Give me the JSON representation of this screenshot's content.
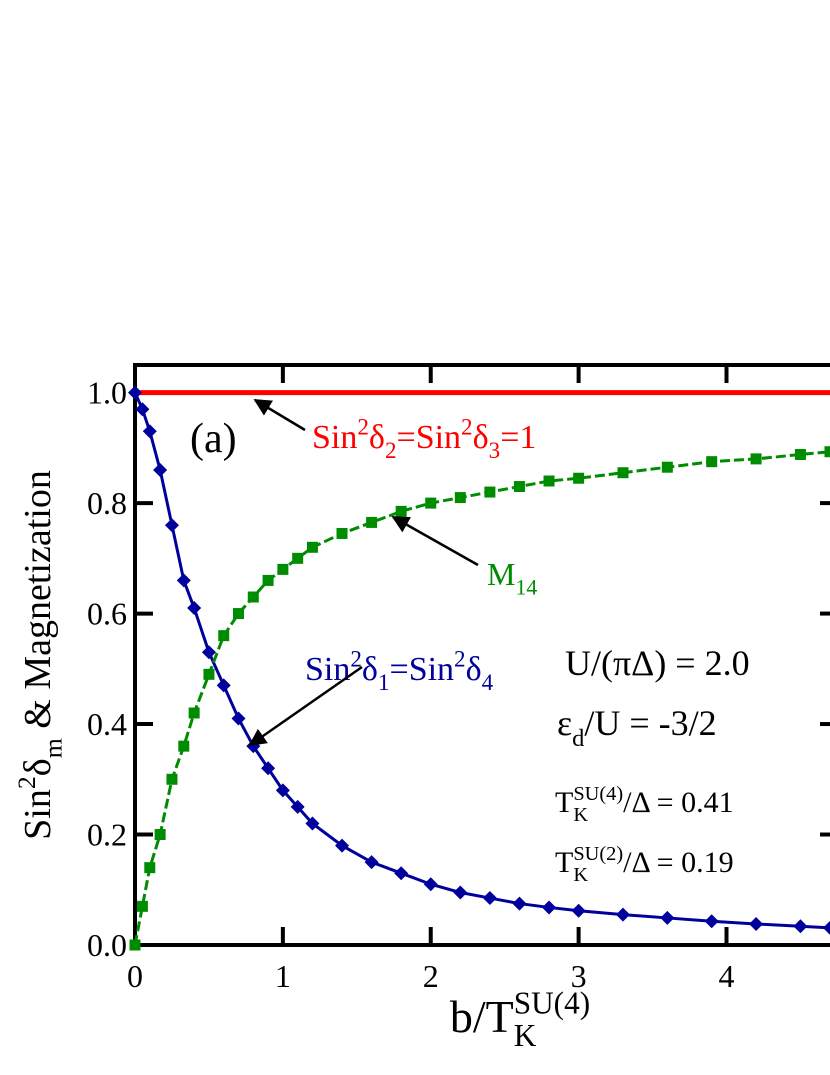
{
  "chart_data": {
    "type": "scatter",
    "xlim": [
      0,
      4.7
    ],
    "ylim": [
      0,
      1.05
    ],
    "xticks": [
      0,
      1,
      2,
      3,
      4
    ],
    "yticks": [
      {
        "value": 0,
        "label": "0.0"
      },
      {
        "value": 0.2,
        "label": "0.2"
      },
      {
        "value": 0.4,
        "label": "0.4"
      },
      {
        "value": 0.6,
        "label": "0.6"
      },
      {
        "value": 0.8,
        "label": "0.8"
      },
      {
        "value": 1,
        "label": "1.0"
      }
    ],
    "x_label": [
      {
        "t": "b/T"
      },
      {
        "sub": "K",
        "sup": "SU(4)"
      }
    ],
    "y_label": [
      {
        "t": "Sin"
      },
      {
        "sup": "2"
      },
      {
        "t": "δ"
      },
      {
        "sub": "m"
      },
      {
        "t": " & Magnetization"
      }
    ],
    "panel_label": "(a)",
    "series": [
      {
        "color": "#ff0000",
        "marker": "none",
        "x": [
          0,
          4.7
        ],
        "values": [
          1,
          1
        ]
      },
      {
        "color": "#00009c",
        "marker": "diamond",
        "x": [
          0,
          0.05,
          0.1,
          0.17,
          0.25,
          0.33,
          0.4,
          0.5,
          0.6,
          0.7,
          0.8,
          0.9,
          1.0,
          1.1,
          1.2,
          1.4,
          1.6,
          1.8,
          2.0,
          2.2,
          2.4,
          2.6,
          2.8,
          3.0,
          3.3,
          3.6,
          3.9,
          4.2,
          4.5,
          4.7
        ],
        "values": [
          1.0,
          0.97,
          0.93,
          0.86,
          0.76,
          0.66,
          0.61,
          0.53,
          0.47,
          0.41,
          0.36,
          0.32,
          0.28,
          0.25,
          0.22,
          0.18,
          0.15,
          0.13,
          0.11,
          0.095,
          0.085,
          0.075,
          0.068,
          0.062,
          0.055,
          0.049,
          0.043,
          0.038,
          0.034,
          0.031
        ]
      },
      {
        "color": "#008c00",
        "marker": "square",
        "x": [
          0,
          0.05,
          0.1,
          0.17,
          0.25,
          0.33,
          0.4,
          0.5,
          0.6,
          0.7,
          0.8,
          0.9,
          1.0,
          1.1,
          1.2,
          1.4,
          1.6,
          1.8,
          2.0,
          2.2,
          2.4,
          2.6,
          2.8,
          3.0,
          3.3,
          3.6,
          3.9,
          4.2,
          4.5,
          4.7
        ],
        "values": [
          0,
          0.07,
          0.14,
          0.2,
          0.3,
          0.36,
          0.42,
          0.49,
          0.56,
          0.6,
          0.63,
          0.66,
          0.68,
          0.7,
          0.72,
          0.745,
          0.765,
          0.785,
          0.8,
          0.81,
          0.82,
          0.83,
          0.84,
          0.845,
          0.855,
          0.865,
          0.875,
          0.88,
          0.888,
          0.893
        ]
      }
    ],
    "annotations": [
      {
        "color": "#ff0000",
        "parts": [
          {
            "t": "Sin"
          },
          {
            "sup": "2"
          },
          {
            "t": "δ"
          },
          {
            "sub": "2"
          },
          {
            "t": "=Sin"
          },
          {
            "sup": "2"
          },
          {
            "t": "δ"
          },
          {
            "sub": "3"
          },
          {
            "t": "=1"
          }
        ]
      },
      {
        "color": "#008c00",
        "parts": [
          {
            "t": "M"
          },
          {
            "sub": "14"
          }
        ]
      },
      {
        "color": "#00009c",
        "parts": [
          {
            "t": "Sin"
          },
          {
            "sup": "2"
          },
          {
            "t": "δ"
          },
          {
            "sub": "1"
          },
          {
            "t": "=Sin"
          },
          {
            "sup": "2"
          },
          {
            "t": "δ"
          },
          {
            "sub": "4"
          }
        ]
      },
      {
        "color": "#000000",
        "parts": [
          {
            "t": "U/(πΔ) = 2.0"
          }
        ]
      },
      {
        "color": "#000000",
        "parts": [
          {
            "t": "ε"
          },
          {
            "sub": "d"
          },
          {
            "t": "/U = -3/2"
          }
        ]
      },
      {
        "color": "#000000",
        "parts": [
          {
            "t": "T"
          },
          {
            "sub": "K",
            "sup": "SU(4)"
          },
          {
            "t": "/Δ = 0.41"
          }
        ]
      },
      {
        "color": "#000000",
        "parts": [
          {
            "t": "T"
          },
          {
            "sub": "K",
            "sup": "SU(2)"
          },
          {
            "t": "/Δ = 0.19"
          }
        ]
      }
    ]
  }
}
